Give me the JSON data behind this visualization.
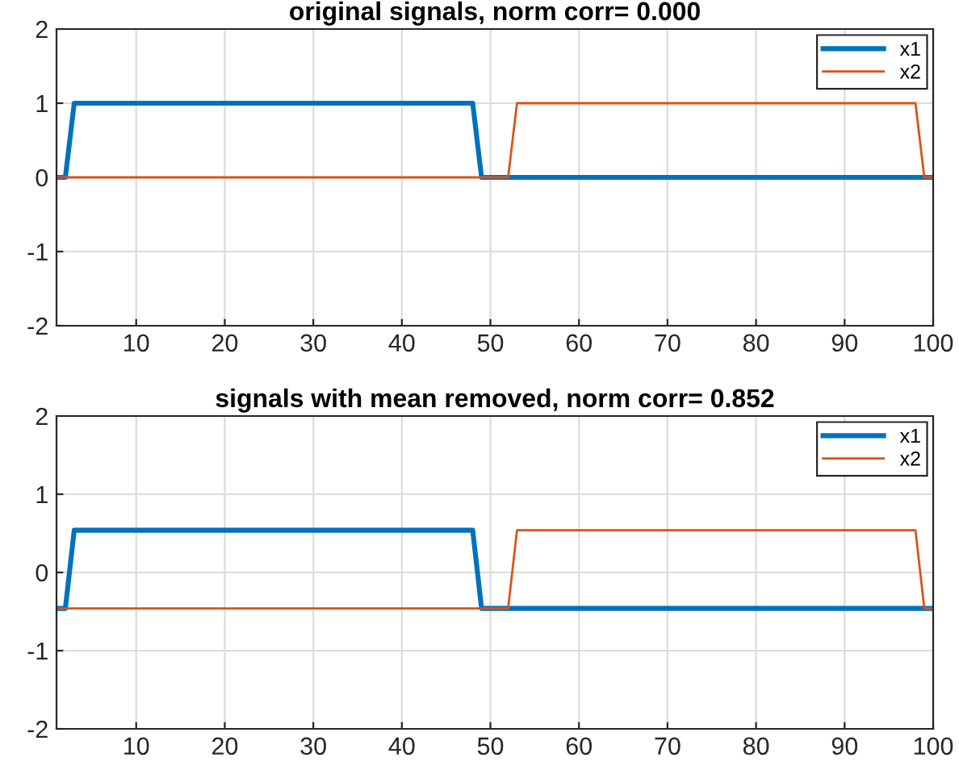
{
  "chart_data": [
    {
      "type": "line",
      "title": "original signals, norm corr= 0.000",
      "xlim": [
        1,
        100
      ],
      "ylim": [
        -2,
        2
      ],
      "xticks": [
        10,
        20,
        30,
        40,
        50,
        60,
        70,
        80,
        90,
        100
      ],
      "yticks": [
        -2,
        -1,
        0,
        1,
        2
      ],
      "grid": true,
      "legend": "top right",
      "series": [
        {
          "name": "x1",
          "color": "#0072bd",
          "x": [
            1,
            2,
            3,
            48,
            49,
            100
          ],
          "values": [
            0,
            0,
            1,
            1,
            0,
            0
          ]
        },
        {
          "name": "x2",
          "color": "#d95319",
          "x": [
            1,
            52,
            53,
            98,
            99,
            100
          ],
          "values": [
            0,
            0,
            1,
            1,
            0,
            0
          ]
        }
      ]
    },
    {
      "type": "line",
      "title": "signals with mean removed, norm corr= 0.852",
      "xlim": [
        1,
        100
      ],
      "ylim": [
        -2,
        2
      ],
      "xticks": [
        10,
        20,
        30,
        40,
        50,
        60,
        70,
        80,
        90,
        100
      ],
      "yticks": [
        -2,
        -1,
        0,
        1,
        2
      ],
      "grid": true,
      "legend": "top right",
      "series": [
        {
          "name": "x1",
          "color": "#0072bd",
          "x": [
            1,
            2,
            3,
            48,
            49,
            100
          ],
          "values": [
            -0.46,
            -0.46,
            0.54,
            0.54,
            -0.46,
            -0.46
          ]
        },
        {
          "name": "x2",
          "color": "#d95319",
          "x": [
            1,
            52,
            53,
            98,
            99,
            100
          ],
          "values": [
            -0.46,
            -0.46,
            0.54,
            0.54,
            -0.46,
            -0.46
          ]
        }
      ]
    }
  ]
}
